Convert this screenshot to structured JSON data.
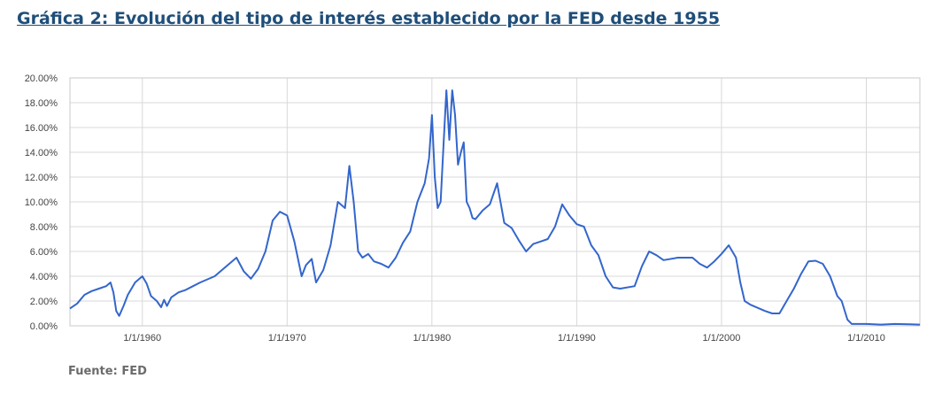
{
  "title": "Gráfica 2: Evolución del tipo de interés establecido por la FED desde 1955",
  "source": "Fuente: FED",
  "colors": {
    "title": "#1f4e79",
    "line": "#3366cc",
    "grid": "#d9d9d9",
    "source": "#6b6b6b"
  },
  "chart_data": {
    "type": "line",
    "title": "",
    "xlabel": "",
    "ylabel": "",
    "xlim": [
      1955.0,
      2013.7
    ],
    "ylim": [
      0,
      20
    ],
    "grid": true,
    "legend": "none",
    "y_ticks": [
      0,
      2,
      4,
      6,
      8,
      10,
      12,
      14,
      16,
      18,
      20
    ],
    "y_tick_labels": [
      "0.00%",
      "2.00%",
      "4.00%",
      "6.00%",
      "8.00%",
      "10.00%",
      "12.00%",
      "14.00%",
      "16.00%",
      "18.00%",
      "20.00%"
    ],
    "x_ticks": [
      1960,
      1970,
      1980,
      1990,
      2000,
      2010
    ],
    "x_tick_labels": [
      "1/1/1960",
      "1/1/1970",
      "1/1/1980",
      "1/1/1990",
      "1/1/2000",
      "1/1/2010"
    ],
    "series": [
      {
        "color": "#3366cc",
        "x": [
          1955.0,
          1955.5,
          1956.0,
          1956.5,
          1957.0,
          1957.5,
          1957.8,
          1958.0,
          1958.2,
          1958.4,
          1958.7,
          1959.0,
          1959.5,
          1960.0,
          1960.3,
          1960.6,
          1961.0,
          1961.3,
          1961.5,
          1961.7,
          1962.0,
          1962.5,
          1963.0,
          1963.5,
          1964.0,
          1965.0,
          1966.0,
          1966.5,
          1967.0,
          1967.5,
          1968.0,
          1968.5,
          1969.0,
          1969.5,
          1970.0,
          1970.5,
          1971.0,
          1971.3,
          1971.7,
          1972.0,
          1972.5,
          1973.0,
          1973.5,
          1974.0,
          1974.3,
          1974.6,
          1974.9,
          1975.2,
          1975.6,
          1976.0,
          1976.5,
          1977.0,
          1977.5,
          1978.0,
          1978.5,
          1979.0,
          1979.5,
          1979.8,
          1980.0,
          1980.2,
          1980.4,
          1980.6,
          1980.8,
          1981.0,
          1981.2,
          1981.4,
          1981.6,
          1981.8,
          1982.0,
          1982.2,
          1982.4,
          1982.6,
          1982.8,
          1983.0,
          1983.5,
          1984.0,
          1984.5,
          1985.0,
          1985.5,
          1986.0,
          1986.5,
          1987.0,
          1987.5,
          1988.0,
          1988.5,
          1989.0,
          1989.5,
          1990.0,
          1990.5,
          1991.0,
          1991.5,
          1992.0,
          1992.5,
          1993.0,
          1994.0,
          1994.5,
          1995.0,
          1995.5,
          1996.0,
          1997.0,
          1998.0,
          1998.5,
          1999.0,
          1999.5,
          2000.0,
          2000.5,
          2001.0,
          2001.3,
          2001.6,
          2002.0,
          2003.0,
          2003.5,
          2004.0,
          2004.5,
          2005.0,
          2005.5,
          2006.0,
          2006.5,
          2007.0,
          2007.5,
          2008.0,
          2008.3,
          2008.7,
          2009.0,
          2010.0,
          2011.0,
          2012.0,
          2013.0,
          2013.7
        ],
        "values": [
          1.4,
          1.8,
          2.5,
          2.8,
          3.0,
          3.2,
          3.5,
          2.7,
          1.2,
          0.8,
          1.6,
          2.5,
          3.5,
          4.0,
          3.4,
          2.4,
          2.0,
          1.5,
          2.1,
          1.6,
          2.3,
          2.7,
          2.9,
          3.2,
          3.5,
          4.0,
          5.0,
          5.5,
          4.4,
          3.8,
          4.6,
          6.0,
          8.5,
          9.2,
          8.9,
          6.8,
          4.0,
          4.9,
          5.4,
          3.5,
          4.5,
          6.5,
          10.0,
          9.5,
          12.9,
          10.0,
          6.0,
          5.5,
          5.8,
          5.2,
          5.0,
          4.7,
          5.5,
          6.7,
          7.6,
          10.0,
          11.5,
          13.5,
          17.0,
          12.0,
          9.5,
          10.0,
          14.5,
          19.0,
          15.0,
          19.0,
          17.0,
          13.0,
          14.0,
          14.8,
          10.0,
          9.5,
          8.7,
          8.6,
          9.3,
          9.8,
          11.5,
          8.3,
          7.9,
          6.9,
          6.0,
          6.6,
          6.8,
          7.0,
          8.0,
          9.8,
          8.9,
          8.2,
          8.0,
          6.5,
          5.7,
          4.0,
          3.1,
          3.0,
          3.2,
          4.8,
          6.0,
          5.7,
          5.3,
          5.5,
          5.5,
          5.0,
          4.7,
          5.2,
          5.8,
          6.5,
          5.5,
          3.5,
          2.0,
          1.7,
          1.2,
          1.0,
          1.0,
          2.0,
          3.0,
          4.2,
          5.2,
          5.25,
          5.0,
          4.0,
          2.4,
          2.0,
          0.5,
          0.15,
          0.15,
          0.1,
          0.15,
          0.12,
          0.1
        ]
      }
    ]
  }
}
